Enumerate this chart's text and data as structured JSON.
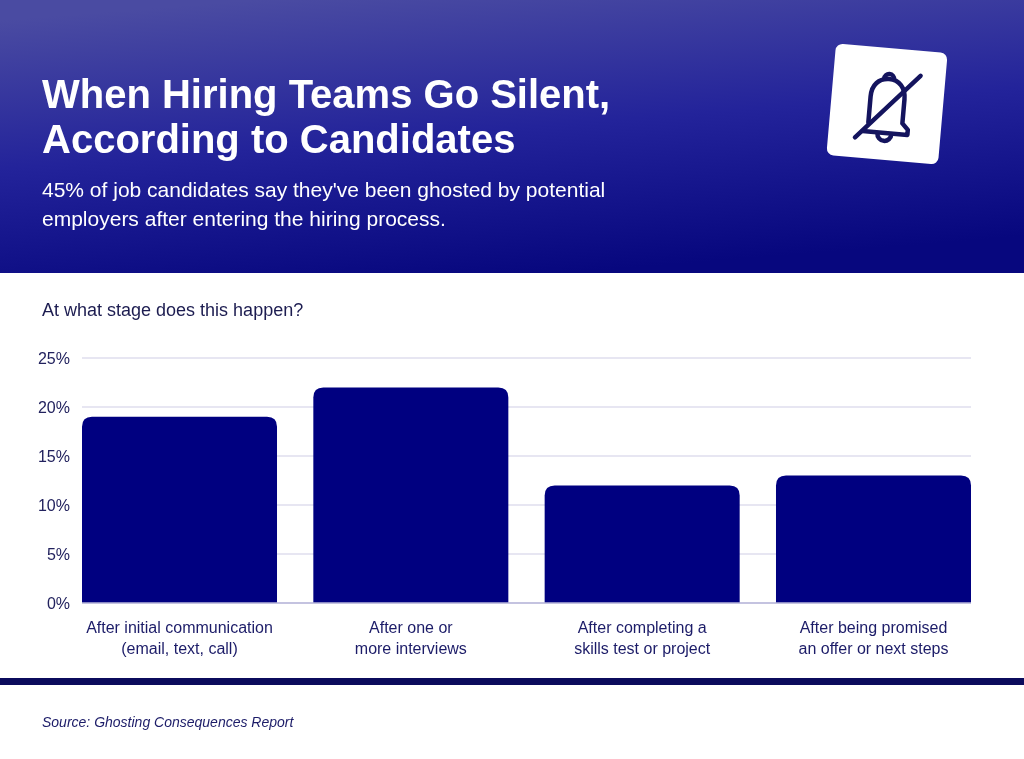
{
  "chart_data": {
    "type": "bar",
    "title": "When Hiring Teams Go Silent,\nAccording to Candidates",
    "subtitle": "45% of job candidates say they've been ghosted by potential employers after entering the hiring process.",
    "ylabel": "At what stage does this happen?",
    "categories": [
      "After initial communication\n(email, text, call)",
      "After one or\nmore interviews",
      "After completing a\nskills test or project",
      "After being promised\nan offer or next steps"
    ],
    "values": [
      19,
      22,
      12,
      13
    ],
    "color": "#000080",
    "ylim": [
      0,
      25
    ],
    "yticks": [
      {
        "value": 0,
        "label": "0%"
      },
      {
        "value": 5,
        "label": "5%"
      },
      {
        "value": 10,
        "label": "10%"
      },
      {
        "value": 15,
        "label": "15%"
      },
      {
        "value": 20,
        "label": "20%"
      },
      {
        "value": 25,
        "label": "25%"
      }
    ],
    "grid": "y",
    "annotations": [
      "Source: Ghosting Consequences Report"
    ]
  }
}
